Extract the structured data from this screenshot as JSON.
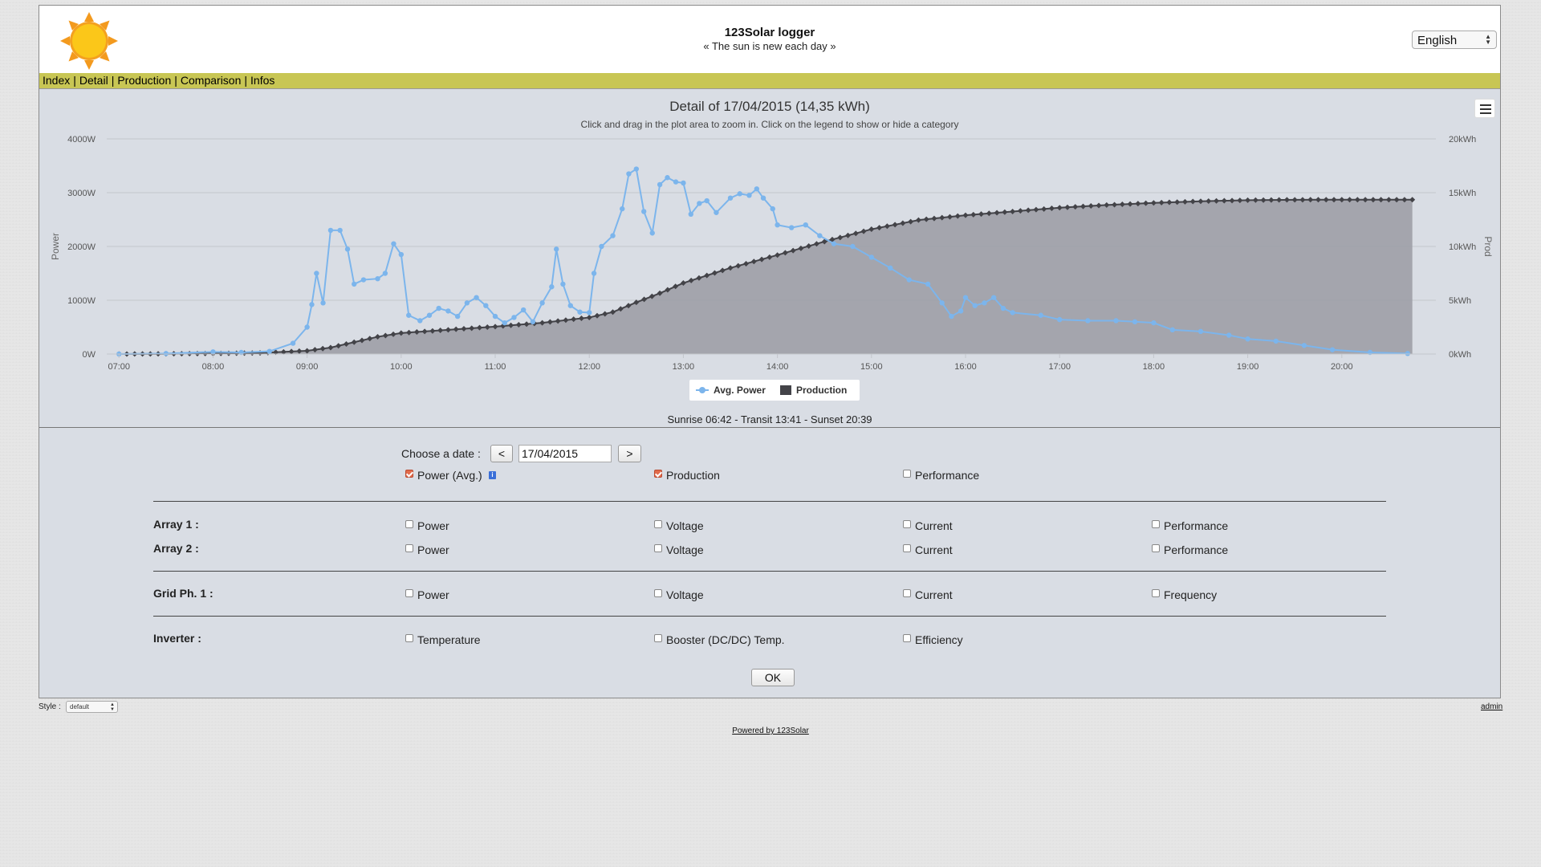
{
  "header": {
    "title": "123Solar logger",
    "subtitle": "« The sun is new each day »",
    "language": "English"
  },
  "nav": {
    "items": [
      "Index",
      "Detail",
      "Production",
      "Comparison",
      "Infos"
    ]
  },
  "chart_data": {
    "type": "line",
    "title": "Detail of 17/04/2015 (14,35 kWh)",
    "subtitle": "Click and drag in the plot area to zoom in. Click on the legend to show or hide a category",
    "y_left": {
      "label": "Power",
      "ticks": [
        "0W",
        "1000W",
        "2000W",
        "3000W",
        "4000W"
      ],
      "range": [
        0,
        4000
      ]
    },
    "y_right": {
      "label": "Prod",
      "ticks": [
        "0kWh",
        "5kWh",
        "10kWh",
        "15kWh",
        "20kWh"
      ],
      "range": [
        0,
        20
      ]
    },
    "x_ticks": [
      "07:00",
      "08:00",
      "09:00",
      "10:00",
      "11:00",
      "12:00",
      "13:00",
      "14:00",
      "15:00",
      "16:00",
      "17:00",
      "18:00",
      "19:00",
      "20:00"
    ],
    "x_range_hours": [
      6.87,
      21.0
    ],
    "grid": true,
    "legend": "bottom-center",
    "series": [
      {
        "name": "Avg. Power",
        "color": "#7cb5ec",
        "axis": "left",
        "points": [
          [
            7.0,
            0
          ],
          [
            7.5,
            10
          ],
          [
            8.0,
            40
          ],
          [
            8.3,
            30
          ],
          [
            8.6,
            50
          ],
          [
            8.85,
            200
          ],
          [
            9.0,
            500
          ],
          [
            9.05,
            920
          ],
          [
            9.1,
            1500
          ],
          [
            9.17,
            950
          ],
          [
            9.25,
            2300
          ],
          [
            9.35,
            2300
          ],
          [
            9.43,
            1950
          ],
          [
            9.5,
            1300
          ],
          [
            9.6,
            1380
          ],
          [
            9.75,
            1400
          ],
          [
            9.83,
            1500
          ],
          [
            9.92,
            2050
          ],
          [
            10.0,
            1850
          ],
          [
            10.08,
            720
          ],
          [
            10.2,
            620
          ],
          [
            10.3,
            720
          ],
          [
            10.4,
            850
          ],
          [
            10.5,
            800
          ],
          [
            10.6,
            700
          ],
          [
            10.7,
            950
          ],
          [
            10.8,
            1050
          ],
          [
            10.9,
            900
          ],
          [
            11.0,
            700
          ],
          [
            11.1,
            580
          ],
          [
            11.2,
            680
          ],
          [
            11.3,
            820
          ],
          [
            11.4,
            600
          ],
          [
            11.5,
            950
          ],
          [
            11.6,
            1250
          ],
          [
            11.65,
            1950
          ],
          [
            11.72,
            1300
          ],
          [
            11.8,
            900
          ],
          [
            11.9,
            780
          ],
          [
            12.0,
            770
          ],
          [
            12.05,
            1500
          ],
          [
            12.13,
            2000
          ],
          [
            12.25,
            2200
          ],
          [
            12.35,
            2700
          ],
          [
            12.42,
            3350
          ],
          [
            12.5,
            3440
          ],
          [
            12.58,
            2650
          ],
          [
            12.67,
            2250
          ],
          [
            12.75,
            3150
          ],
          [
            12.83,
            3280
          ],
          [
            12.92,
            3200
          ],
          [
            13.0,
            3180
          ],
          [
            13.08,
            2600
          ],
          [
            13.17,
            2800
          ],
          [
            13.25,
            2850
          ],
          [
            13.35,
            2630
          ],
          [
            13.5,
            2900
          ],
          [
            13.6,
            2980
          ],
          [
            13.7,
            2950
          ],
          [
            13.78,
            3070
          ],
          [
            13.85,
            2900
          ],
          [
            13.95,
            2700
          ],
          [
            14.0,
            2400
          ],
          [
            14.15,
            2350
          ],
          [
            14.3,
            2400
          ],
          [
            14.45,
            2200
          ],
          [
            14.6,
            2050
          ],
          [
            14.8,
            2000
          ],
          [
            15.0,
            1800
          ],
          [
            15.2,
            1600
          ],
          [
            15.4,
            1380
          ],
          [
            15.6,
            1300
          ],
          [
            15.75,
            950
          ],
          [
            15.85,
            700
          ],
          [
            15.95,
            800
          ],
          [
            16.0,
            1050
          ],
          [
            16.1,
            900
          ],
          [
            16.2,
            950
          ],
          [
            16.3,
            1050
          ],
          [
            16.4,
            850
          ],
          [
            16.5,
            770
          ],
          [
            16.8,
            720
          ],
          [
            17.0,
            640
          ],
          [
            17.3,
            620
          ],
          [
            17.6,
            620
          ],
          [
            17.8,
            600
          ],
          [
            18.0,
            580
          ],
          [
            18.2,
            450
          ],
          [
            18.5,
            420
          ],
          [
            18.8,
            350
          ],
          [
            19.0,
            280
          ],
          [
            19.3,
            240
          ],
          [
            19.6,
            160
          ],
          [
            19.9,
            80
          ],
          [
            20.3,
            30
          ],
          [
            20.7,
            10
          ]
        ]
      },
      {
        "name": "Production",
        "color": "#434348",
        "axis": "right",
        "points": [
          [
            7.0,
            0
          ],
          [
            7.5,
            0.02
          ],
          [
            8.0,
            0.05
          ],
          [
            8.5,
            0.1
          ],
          [
            9.0,
            0.3
          ],
          [
            9.25,
            0.6
          ],
          [
            9.5,
            1.1
          ],
          [
            9.75,
            1.6
          ],
          [
            10.0,
            1.95
          ],
          [
            10.5,
            2.25
          ],
          [
            11.0,
            2.55
          ],
          [
            11.5,
            2.9
          ],
          [
            12.0,
            3.4
          ],
          [
            12.25,
            3.9
          ],
          [
            12.5,
            4.8
          ],
          [
            12.75,
            5.65
          ],
          [
            13.0,
            6.6
          ],
          [
            13.5,
            8.0
          ],
          [
            14.0,
            9.2
          ],
          [
            14.5,
            10.45
          ],
          [
            15.0,
            11.6
          ],
          [
            15.5,
            12.45
          ],
          [
            16.0,
            12.9
          ],
          [
            16.5,
            13.25
          ],
          [
            17.0,
            13.6
          ],
          [
            17.5,
            13.85
          ],
          [
            18.0,
            14.05
          ],
          [
            18.5,
            14.2
          ],
          [
            19.0,
            14.3
          ],
          [
            19.5,
            14.34
          ],
          [
            20.0,
            14.35
          ],
          [
            20.75,
            14.35
          ]
        ]
      }
    ]
  },
  "sun_info": "Sunrise 06:42 - Transit 13:41 - Sunset 20:39",
  "controls": {
    "choose_date_label": "Choose a date :",
    "prev_label": "<",
    "next_label": ">",
    "date_value": "17/04/2015",
    "main_options": [
      {
        "label": "Power (Avg.)",
        "checked": true
      },
      {
        "label": "Production",
        "checked": true
      },
      {
        "label": "Performance",
        "checked": false
      }
    ],
    "array1_label": "Array 1 :",
    "array2_label": "Array 2 :",
    "array_options": [
      "Power",
      "Voltage",
      "Current",
      "Performance"
    ],
    "grid_label": "Grid Ph. 1 :",
    "grid_options": [
      "Power",
      "Voltage",
      "Current",
      "Frequency"
    ],
    "inverter_label": "Inverter :",
    "inverter_options": [
      "Temperature",
      "Booster (DC/DC) Temp.",
      "Efficiency"
    ],
    "ok_label": "OK"
  },
  "footer": {
    "style_label": "Style :",
    "style_value": "default",
    "admin_label": "admin",
    "powered_by": "Powered by 123Solar"
  },
  "colors": {
    "nav_bar": "#c8c654",
    "checkbox_checked": "#e26b4b",
    "plot_fill": "#9a9ba3"
  }
}
